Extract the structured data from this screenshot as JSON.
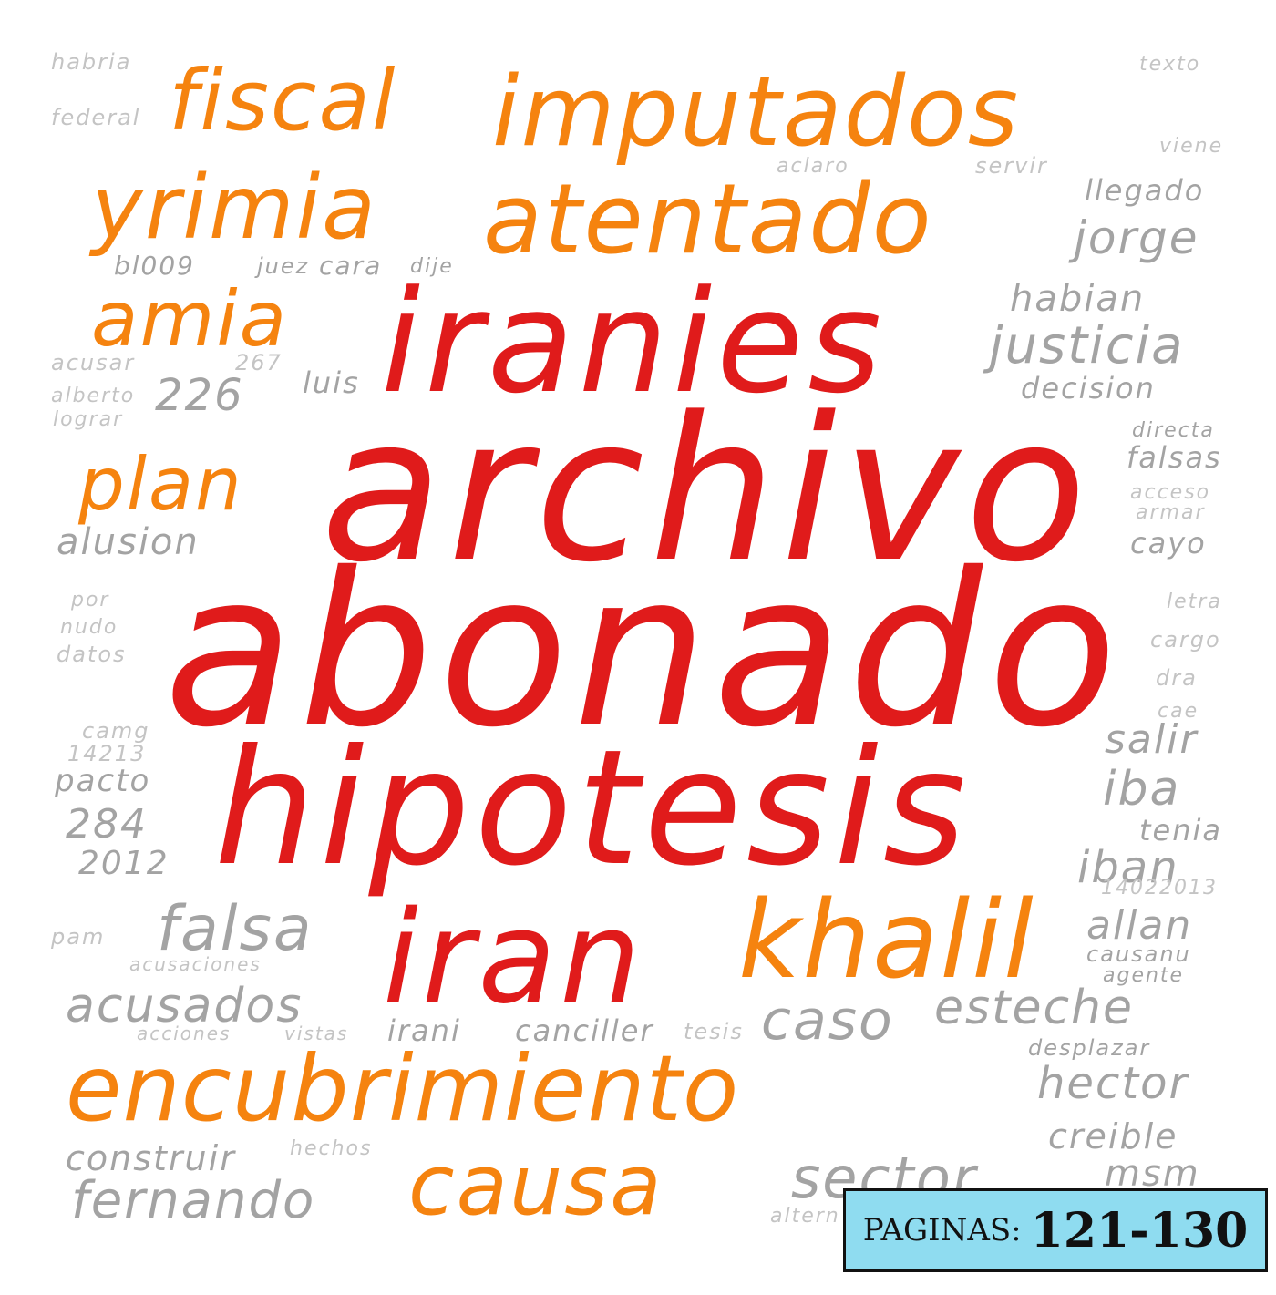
{
  "cloud": {
    "colors": {
      "primary": "#e01b1b",
      "secondary": "#f5830f",
      "tertiary": "#a3a3a3",
      "background": "#ffffff"
    },
    "words": {
      "abonado": "abonado",
      "archivo": "archivo",
      "hipotesis": "hipotesis",
      "iranies": "iranies",
      "iran": "iran",
      "imputados": "imputados",
      "atentado": "atentado",
      "fiscal": "fiscal",
      "yrimia": "yrimia",
      "amia": "amia",
      "plan": "plan",
      "khalil": "khalil",
      "encubrimiento": "encubrimiento",
      "causa": "causa",
      "falsa": "falsa",
      "acusados": "acusados",
      "caso": "caso",
      "esteche": "esteche",
      "fernando": "fernando",
      "construir": "construir",
      "sector": "sector",
      "justicia": "justicia",
      "jorge": "jorge",
      "habian": "habian",
      "decision": "decision",
      "llegado": "llegado",
      "alusion": "alusion",
      "n226": "226",
      "luis": "luis",
      "bl009": "bl009",
      "juez": "juez",
      "cara": "cara",
      "dije": "dije",
      "acusar": "acusar",
      "alberto": "alberto",
      "lograr": "lograr",
      "n267": "267",
      "habria": "habria",
      "federal": "federal",
      "aclaro": "aclaro",
      "servir": "servir",
      "texto": "texto",
      "viene": "viene",
      "pacto": "pacto",
      "n284": "284",
      "n2012": "2012",
      "camg": "camg",
      "n14213": "14213",
      "datos": "datos",
      "nudo": "nudo",
      "por": "por",
      "pam": "pam",
      "acusaciones": "acusaciones",
      "acciones": "acciones",
      "vistas": "vistas",
      "irani": "irani",
      "canciller": "canciller",
      "tesis": "tesis",
      "hechos": "hechos",
      "salir": "salir",
      "iba": "iba",
      "tenia": "tenia",
      "iban": "iban",
      "allan": "allan",
      "causanu": "causanu",
      "agente": "agente",
      "desplazar": "desplazar",
      "hector": "hector",
      "creible": "creible",
      "msm": "msm",
      "falsas": "falsas",
      "directa": "directa",
      "acceso": "acceso",
      "armar": "armar",
      "cayo": "cayo",
      "letra": "letra",
      "cargo": "cargo",
      "dra": "dra",
      "cae": "cae",
      "n14022013": "14022013",
      "altern": "altern"
    }
  },
  "badge": {
    "label": "PAGINAS:",
    "pages": "121-130",
    "background": "#8fdcf0",
    "border": "#111111"
  }
}
